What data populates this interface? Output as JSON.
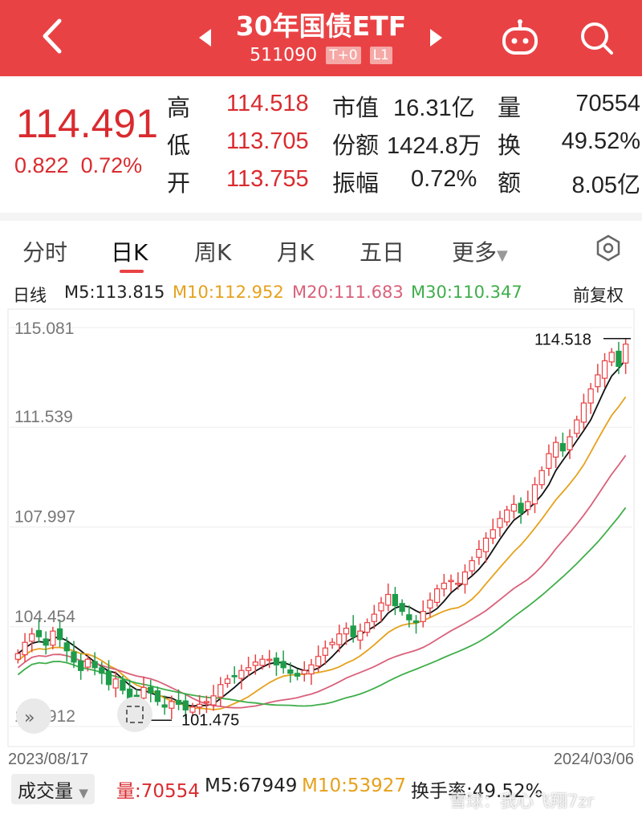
{
  "header": {
    "title": "30年国债ETF",
    "code": "511090",
    "badges": [
      "T+0",
      "L1"
    ]
  },
  "quote": {
    "price": "114.491",
    "change": "0.822",
    "change_pct": "0.72%",
    "high_label": "高",
    "high": "114.518",
    "low_label": "低",
    "low": "113.705",
    "open_label": "开",
    "open": "113.755",
    "mktcap_label": "市值",
    "mktcap": "16.31亿",
    "shares_label": "份额",
    "shares": "1424.8万",
    "amplitude_label": "振幅",
    "amplitude": "0.72%",
    "volume_label": "量",
    "volume": "70554",
    "turnover_label": "换",
    "turnover": "49.52%",
    "amount_label": "额",
    "amount": "8.05亿"
  },
  "tabs": [
    "分时",
    "日K",
    "周K",
    "月K",
    "五日",
    "更多"
  ],
  "ma_legend": {
    "kind": "日线",
    "m5": "M5:113.815",
    "m10": "M10:112.952",
    "m20": "M20:111.683",
    "m30": "M30:110.347",
    "adjust": "前复权"
  },
  "colors": {
    "up": "#e94245",
    "down": "#1e9c4a",
    "m5": "#111111",
    "m10": "#e6a11c",
    "m20": "#d9617a",
    "m30": "#3fae4a"
  },
  "chart_data": {
    "type": "candlestick",
    "y_ticks": [
      "115.081",
      "111.539",
      "107.997",
      "104.454",
      "100.912"
    ],
    "ylim": [
      100.912,
      115.081
    ],
    "x_start": "2023/08/17",
    "x_end": "2024/03/06",
    "max_label": "114.518",
    "min_label": "101.475",
    "close": [
      103.5,
      103.9,
      104.2,
      104.1,
      103.8,
      104.3,
      104.0,
      103.6,
      103.2,
      102.9,
      103.3,
      103.0,
      102.8,
      102.4,
      102.6,
      102.2,
      101.9,
      102.0,
      102.3,
      102.1,
      101.8,
      101.6,
      101.8,
      101.7,
      101.5,
      101.6,
      101.7,
      101.8,
      102.0,
      102.4,
      102.6,
      102.7,
      102.9,
      103.0,
      103.2,
      103.3,
      103.3,
      103.1,
      103.0,
      102.8,
      102.7,
      102.9,
      103.1,
      103.4,
      103.7,
      103.9,
      104.2,
      104.4,
      104.1,
      104.3,
      104.6,
      104.9,
      105.3,
      105.6,
      105.2,
      105.0,
      104.7,
      104.6,
      105.0,
      105.4,
      105.8,
      106.0,
      106.1,
      106.0,
      106.4,
      106.8,
      107.2,
      107.6,
      107.9,
      108.3,
      108.6,
      108.8,
      108.5,
      108.9,
      109.5,
      110.0,
      110.6,
      111.0,
      110.7,
      111.2,
      111.8,
      112.4,
      112.9,
      113.4,
      113.9,
      114.2,
      113.7,
      114.491
    ]
  },
  "bottom": {
    "label": "成交量",
    "vol": "量:70554",
    "m5": "M5:67949",
    "m10": "M10:53927",
    "turnover": "换手率:49.52%",
    "watermark": "雪球：我心飞翔7zr"
  }
}
